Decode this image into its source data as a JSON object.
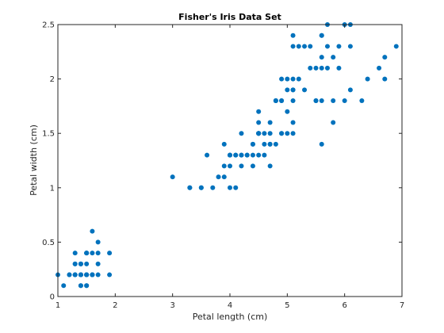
{
  "chart_data": {
    "type": "scatter",
    "title": "Fisher's Iris Data Set",
    "xlabel": "Petal length (cm)",
    "ylabel": "Petal width (cm)",
    "xlim": [
      1,
      7
    ],
    "ylim": [
      0,
      2.5
    ],
    "xticks": [
      1,
      2,
      3,
      4,
      5,
      6,
      7
    ],
    "yticks": [
      0,
      0.5,
      1,
      1.5,
      2,
      2.5
    ],
    "ytick_labels": [
      "0",
      "0.5",
      "1",
      "1.5",
      "2",
      "2.5"
    ],
    "grid": false,
    "marker_color": "#0072BD",
    "series": [
      {
        "points": [
          [
            1.4,
            0.2
          ],
          [
            1.4,
            0.2
          ],
          [
            1.3,
            0.2
          ],
          [
            1.5,
            0.2
          ],
          [
            1.4,
            0.2
          ],
          [
            1.7,
            0.4
          ],
          [
            1.4,
            0.3
          ],
          [
            1.5,
            0.2
          ],
          [
            1.4,
            0.2
          ],
          [
            1.5,
            0.1
          ],
          [
            1.5,
            0.2
          ],
          [
            1.6,
            0.2
          ],
          [
            1.4,
            0.1
          ],
          [
            1.1,
            0.1
          ],
          [
            1.2,
            0.2
          ],
          [
            1.5,
            0.4
          ],
          [
            1.3,
            0.4
          ],
          [
            1.4,
            0.3
          ],
          [
            1.7,
            0.3
          ],
          [
            1.5,
            0.3
          ],
          [
            1.7,
            0.2
          ],
          [
            1.5,
            0.4
          ],
          [
            1.0,
            0.2
          ],
          [
            1.7,
            0.5
          ],
          [
            1.9,
            0.2
          ],
          [
            1.6,
            0.2
          ],
          [
            1.6,
            0.4
          ],
          [
            1.5,
            0.2
          ],
          [
            1.4,
            0.2
          ],
          [
            1.6,
            0.2
          ],
          [
            1.6,
            0.2
          ],
          [
            1.5,
            0.4
          ],
          [
            1.5,
            0.1
          ],
          [
            1.4,
            0.2
          ],
          [
            1.5,
            0.2
          ],
          [
            1.2,
            0.2
          ],
          [
            1.3,
            0.2
          ],
          [
            1.4,
            0.1
          ],
          [
            1.3,
            0.2
          ],
          [
            1.5,
            0.2
          ],
          [
            1.3,
            0.3
          ],
          [
            1.3,
            0.3
          ],
          [
            1.3,
            0.2
          ],
          [
            1.6,
            0.6
          ],
          [
            1.9,
            0.4
          ],
          [
            1.4,
            0.3
          ],
          [
            1.6,
            0.2
          ],
          [
            1.4,
            0.2
          ],
          [
            1.5,
            0.2
          ],
          [
            1.4,
            0.2
          ],
          [
            4.7,
            1.4
          ],
          [
            4.5,
            1.5
          ],
          [
            4.9,
            1.5
          ],
          [
            4.0,
            1.3
          ],
          [
            4.6,
            1.5
          ],
          [
            4.5,
            1.3
          ],
          [
            4.7,
            1.6
          ],
          [
            3.3,
            1.0
          ],
          [
            4.6,
            1.3
          ],
          [
            3.9,
            1.4
          ],
          [
            3.5,
            1.0
          ],
          [
            4.2,
            1.5
          ],
          [
            4.0,
            1.0
          ],
          [
            4.7,
            1.4
          ],
          [
            3.6,
            1.3
          ],
          [
            4.4,
            1.4
          ],
          [
            4.5,
            1.5
          ],
          [
            4.1,
            1.0
          ],
          [
            4.5,
            1.5
          ],
          [
            3.9,
            1.1
          ],
          [
            4.8,
            1.8
          ],
          [
            4.0,
            1.3
          ],
          [
            4.9,
            1.5
          ],
          [
            4.7,
            1.2
          ],
          [
            4.3,
            1.3
          ],
          [
            4.4,
            1.4
          ],
          [
            4.8,
            1.4
          ],
          [
            5.0,
            1.7
          ],
          [
            4.5,
            1.5
          ],
          [
            3.5,
            1.0
          ],
          [
            3.8,
            1.1
          ],
          [
            3.7,
            1.0
          ],
          [
            3.9,
            1.2
          ],
          [
            5.1,
            1.6
          ],
          [
            4.5,
            1.5
          ],
          [
            4.5,
            1.6
          ],
          [
            4.7,
            1.5
          ],
          [
            4.4,
            1.3
          ],
          [
            4.1,
            1.3
          ],
          [
            4.0,
            1.3
          ],
          [
            4.4,
            1.2
          ],
          [
            4.6,
            1.4
          ],
          [
            4.0,
            1.2
          ],
          [
            3.3,
            1.0
          ],
          [
            4.2,
            1.3
          ],
          [
            4.2,
            1.2
          ],
          [
            4.2,
            1.3
          ],
          [
            4.3,
            1.3
          ],
          [
            3.0,
            1.1
          ],
          [
            4.1,
            1.3
          ],
          [
            6.0,
            2.5
          ],
          [
            5.1,
            1.9
          ],
          [
            5.9,
            2.1
          ],
          [
            5.6,
            1.8
          ],
          [
            5.8,
            2.2
          ],
          [
            6.6,
            2.1
          ],
          [
            4.5,
            1.7
          ],
          [
            6.3,
            1.8
          ],
          [
            5.8,
            1.8
          ],
          [
            6.1,
            2.5
          ],
          [
            5.1,
            2.0
          ],
          [
            5.3,
            1.9
          ],
          [
            5.5,
            2.1
          ],
          [
            5.0,
            2.0
          ],
          [
            5.1,
            2.4
          ],
          [
            5.3,
            2.3
          ],
          [
            5.5,
            1.8
          ],
          [
            6.7,
            2.2
          ],
          [
            6.9,
            2.3
          ],
          [
            5.0,
            1.5
          ],
          [
            5.7,
            2.3
          ],
          [
            4.9,
            2.0
          ],
          [
            6.7,
            2.0
          ],
          [
            4.9,
            1.8
          ],
          [
            5.7,
            2.1
          ],
          [
            6.0,
            1.8
          ],
          [
            4.8,
            1.8
          ],
          [
            4.9,
            1.8
          ],
          [
            5.6,
            2.1
          ],
          [
            5.8,
            1.6
          ],
          [
            6.1,
            1.9
          ],
          [
            6.4,
            2.0
          ],
          [
            5.6,
            2.2
          ],
          [
            5.1,
            1.5
          ],
          [
            5.6,
            1.4
          ],
          [
            6.1,
            2.3
          ],
          [
            5.6,
            2.4
          ],
          [
            5.5,
            1.8
          ],
          [
            4.8,
            1.8
          ],
          [
            5.4,
            2.1
          ],
          [
            5.6,
            2.4
          ],
          [
            5.1,
            2.3
          ],
          [
            5.1,
            1.9
          ],
          [
            5.9,
            2.3
          ],
          [
            5.7,
            2.5
          ],
          [
            5.2,
            2.3
          ],
          [
            5.0,
            1.9
          ],
          [
            5.2,
            2.0
          ],
          [
            5.4,
            2.3
          ],
          [
            5.1,
            1.8
          ]
        ]
      }
    ]
  }
}
